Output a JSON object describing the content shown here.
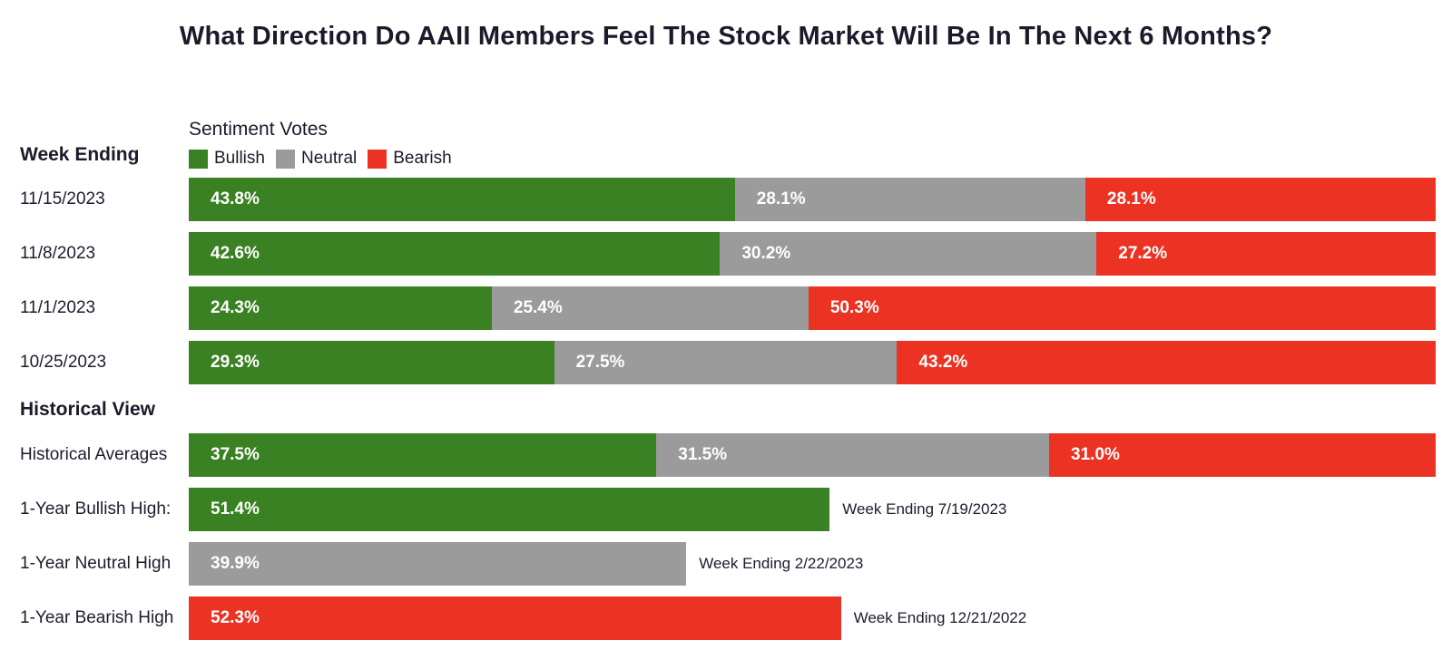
{
  "page": {
    "title": "What Direction Do AAII Members Feel The Stock Market Will Be In The Next 6 Months?"
  },
  "labels": {
    "week_ending": "Week Ending",
    "legend_title": "Sentiment Votes",
    "historical_heading": "Historical View"
  },
  "colors": {
    "bullish": "#3A8123",
    "neutral": "#9B9B9B",
    "bearish": "#EB3223",
    "text_dark": "#1A1A2B",
    "value_text": "#FFFFFF"
  },
  "chart_data": {
    "type": "bar",
    "orientation": "horizontal",
    "stacked": true,
    "unit": "%",
    "xlim": [
      0,
      100
    ],
    "grid": false,
    "title": "What Direction Do AAII Members Feel The Stock Market Will Be In The Next 6 Months?",
    "legend": {
      "title": "Sentiment Votes",
      "position": "top-left",
      "entries": [
        "Bullish",
        "Neutral",
        "Bearish"
      ]
    },
    "row_axis_label": "Week Ending",
    "categories": [
      "11/15/2023",
      "11/8/2023",
      "11/1/2023",
      "10/25/2023"
    ],
    "series": [
      {
        "name": "Bullish",
        "color": "#3A8123",
        "values": [
          43.8,
          42.6,
          24.3,
          29.3
        ]
      },
      {
        "name": "Neutral",
        "color": "#9B9B9B",
        "values": [
          28.1,
          30.2,
          25.4,
          27.5
        ]
      },
      {
        "name": "Bearish",
        "color": "#EB3223",
        "values": [
          28.1,
          27.2,
          50.3,
          43.2
        ]
      }
    ],
    "historical": {
      "heading": "Historical View",
      "averages_row": {
        "label": "Historical Averages",
        "values": [
          {
            "series": "Bullish",
            "value": 37.5
          },
          {
            "series": "Neutral",
            "value": 31.5
          },
          {
            "series": "Bearish",
            "value": 31.0
          }
        ]
      },
      "high_rows": [
        {
          "label": "1-Year Bullish High:",
          "series": "Bullish",
          "value": 51.4,
          "annotation": "Week Ending 7/19/2023"
        },
        {
          "label": "1-Year Neutral High",
          "series": "Neutral",
          "value": 39.9,
          "annotation": "Week Ending 2/22/2023"
        },
        {
          "label": "1-Year Bearish High",
          "series": "Bearish",
          "value": 52.3,
          "annotation": "Week Ending 12/21/2022"
        }
      ]
    }
  }
}
